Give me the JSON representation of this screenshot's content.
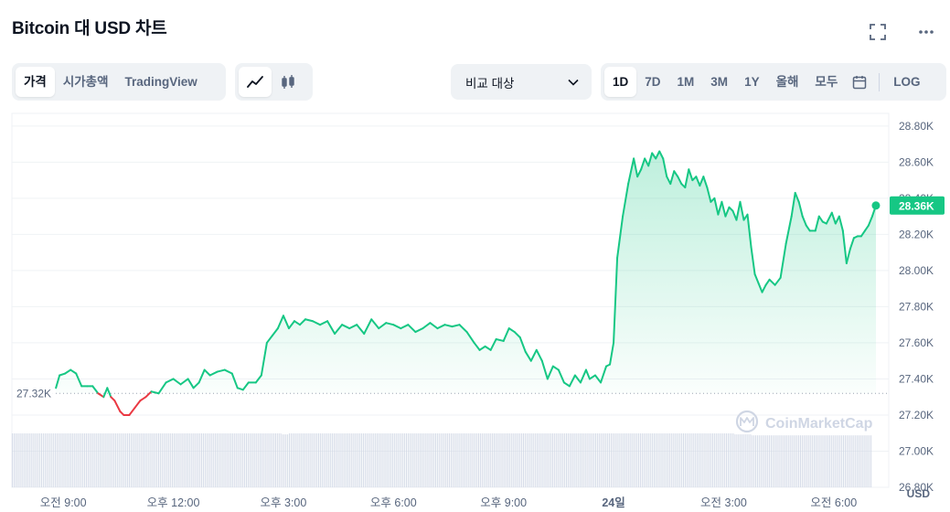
{
  "title": "Bitcoin 대 USD 차트",
  "toolbar": {
    "view_tabs": [
      "가격",
      "시가총액",
      "TradingView"
    ],
    "active_view": "가격",
    "compare_label": "비교 대상",
    "ranges": [
      "1D",
      "7D",
      "1M",
      "3M",
      "1Y",
      "올해",
      "모두"
    ],
    "active_range": "1D",
    "log_label": "LOG"
  },
  "icons": {
    "fullscreen": "fullscreen-icon",
    "more": "more-dots-icon",
    "line_chart": "line-chart-icon",
    "candlestick": "candlestick-icon",
    "chevron": "chevron-down-icon",
    "calendar": "calendar-icon"
  },
  "watermark": "CoinMarketCap",
  "colors": {
    "up": "#16c784",
    "down": "#ea3943",
    "accent_fill": "#16c784",
    "text_muted": "#58667e"
  },
  "chart_data": {
    "type": "area",
    "currency_label": "USD",
    "open_price_label": "27.32K",
    "open_price": 27.32,
    "current_price_label": "28.36K",
    "current_price": 28.36,
    "y_ticks": [
      "28.80K",
      "28.60K",
      "28.40K",
      "28.20K",
      "28.00K",
      "27.80K",
      "27.60K",
      "27.40K",
      "27.20K",
      "27.00K",
      "26.80K"
    ],
    "y_tick_values": [
      28.8,
      28.6,
      28.4,
      28.2,
      28.0,
      27.8,
      27.6,
      27.4,
      27.2,
      27.0,
      26.8
    ],
    "ylim": [
      26.8,
      28.87
    ],
    "x_ticks": [
      "오전 9:00",
      "오후 12:00",
      "오후 3:00",
      "오후 6:00",
      "오후 9:00",
      "24일",
      "오전 3:00",
      "오전 6:00"
    ],
    "x_tick_hours": [
      9,
      12,
      15,
      18,
      21,
      24,
      27,
      30
    ],
    "xlim": [
      7.6,
      31.5
    ],
    "grid": true,
    "series": [
      {
        "unit": "K USD",
        "points": [
          [
            8.8,
            27.35
          ],
          [
            8.9,
            27.42
          ],
          [
            9.05,
            27.43
          ],
          [
            9.2,
            27.45
          ],
          [
            9.35,
            27.43
          ],
          [
            9.5,
            27.36
          ],
          [
            9.65,
            27.36
          ],
          [
            9.8,
            27.36
          ],
          [
            9.95,
            27.32
          ],
          [
            10.1,
            27.3
          ],
          [
            10.2,
            27.35
          ],
          [
            10.3,
            27.3
          ],
          [
            10.4,
            27.28
          ],
          [
            10.55,
            27.22
          ],
          [
            10.65,
            27.2
          ],
          [
            10.8,
            27.2
          ],
          [
            10.95,
            27.24
          ],
          [
            11.1,
            27.28
          ],
          [
            11.25,
            27.3
          ],
          [
            11.4,
            27.33
          ],
          [
            11.6,
            27.32
          ],
          [
            11.8,
            27.38
          ],
          [
            12.0,
            27.4
          ],
          [
            12.2,
            27.37
          ],
          [
            12.4,
            27.4
          ],
          [
            12.55,
            27.35
          ],
          [
            12.7,
            27.38
          ],
          [
            12.85,
            27.45
          ],
          [
            13.0,
            27.42
          ],
          [
            13.2,
            27.44
          ],
          [
            13.4,
            27.45
          ],
          [
            13.6,
            27.43
          ],
          [
            13.75,
            27.35
          ],
          [
            13.9,
            27.34
          ],
          [
            14.05,
            27.38
          ],
          [
            14.25,
            27.38
          ],
          [
            14.4,
            27.42
          ],
          [
            14.55,
            27.6
          ],
          [
            14.7,
            27.64
          ],
          [
            14.85,
            27.68
          ],
          [
            15.0,
            27.75
          ],
          [
            15.15,
            27.68
          ],
          [
            15.3,
            27.72
          ],
          [
            15.45,
            27.7
          ],
          [
            15.6,
            27.73
          ],
          [
            15.8,
            27.72
          ],
          [
            16.0,
            27.7
          ],
          [
            16.2,
            27.72
          ],
          [
            16.4,
            27.65
          ],
          [
            16.6,
            27.7
          ],
          [
            16.8,
            27.68
          ],
          [
            17.0,
            27.7
          ],
          [
            17.2,
            27.65
          ],
          [
            17.4,
            27.73
          ],
          [
            17.6,
            27.68
          ],
          [
            17.8,
            27.71
          ],
          [
            18.0,
            27.7
          ],
          [
            18.2,
            27.68
          ],
          [
            18.4,
            27.7
          ],
          [
            18.6,
            27.66
          ],
          [
            18.8,
            27.68
          ],
          [
            19.0,
            27.71
          ],
          [
            19.2,
            27.68
          ],
          [
            19.4,
            27.7
          ],
          [
            19.6,
            27.69
          ],
          [
            19.8,
            27.7
          ],
          [
            20.0,
            27.66
          ],
          [
            20.2,
            27.6
          ],
          [
            20.35,
            27.56
          ],
          [
            20.5,
            27.58
          ],
          [
            20.65,
            27.56
          ],
          [
            20.8,
            27.62
          ],
          [
            21.0,
            27.61
          ],
          [
            21.15,
            27.68
          ],
          [
            21.3,
            27.66
          ],
          [
            21.45,
            27.63
          ],
          [
            21.6,
            27.55
          ],
          [
            21.75,
            27.5
          ],
          [
            21.9,
            27.56
          ],
          [
            22.05,
            27.5
          ],
          [
            22.2,
            27.4
          ],
          [
            22.35,
            27.47
          ],
          [
            22.5,
            27.45
          ],
          [
            22.65,
            27.38
          ],
          [
            22.8,
            27.36
          ],
          [
            22.95,
            27.42
          ],
          [
            23.1,
            27.38
          ],
          [
            23.25,
            27.45
          ],
          [
            23.35,
            27.4
          ],
          [
            23.5,
            27.42
          ],
          [
            23.65,
            27.38
          ],
          [
            23.8,
            27.47
          ],
          [
            23.9,
            27.48
          ],
          [
            24.0,
            27.6
          ],
          [
            24.1,
            28.07
          ],
          [
            24.25,
            28.3
          ],
          [
            24.4,
            28.48
          ],
          [
            24.55,
            28.62
          ],
          [
            24.65,
            28.52
          ],
          [
            24.75,
            28.56
          ],
          [
            24.85,
            28.62
          ],
          [
            24.95,
            28.58
          ],
          [
            25.05,
            28.65
          ],
          [
            25.15,
            28.62
          ],
          [
            25.25,
            28.66
          ],
          [
            25.35,
            28.62
          ],
          [
            25.45,
            28.52
          ],
          [
            25.55,
            28.48
          ],
          [
            25.65,
            28.55
          ],
          [
            25.75,
            28.52
          ],
          [
            25.85,
            28.48
          ],
          [
            25.95,
            28.46
          ],
          [
            26.05,
            28.56
          ],
          [
            26.15,
            28.5
          ],
          [
            26.25,
            28.52
          ],
          [
            26.35,
            28.47
          ],
          [
            26.45,
            28.52
          ],
          [
            26.55,
            28.46
          ],
          [
            26.65,
            28.38
          ],
          [
            26.75,
            28.4
          ],
          [
            26.85,
            28.31
          ],
          [
            26.95,
            28.38
          ],
          [
            27.05,
            28.3
          ],
          [
            27.15,
            28.35
          ],
          [
            27.25,
            28.33
          ],
          [
            27.35,
            28.28
          ],
          [
            27.45,
            28.38
          ],
          [
            27.55,
            28.28
          ],
          [
            27.65,
            28.31
          ],
          [
            27.75,
            28.13
          ],
          [
            27.85,
            27.98
          ],
          [
            27.95,
            27.93
          ],
          [
            28.05,
            27.88
          ],
          [
            28.15,
            27.92
          ],
          [
            28.25,
            27.95
          ],
          [
            28.4,
            27.92
          ],
          [
            28.55,
            27.96
          ],
          [
            28.7,
            28.15
          ],
          [
            28.85,
            28.3
          ],
          [
            28.95,
            28.43
          ],
          [
            29.05,
            28.38
          ],
          [
            29.15,
            28.3
          ],
          [
            29.25,
            28.25
          ],
          [
            29.35,
            28.22
          ],
          [
            29.5,
            28.22
          ],
          [
            29.6,
            28.3
          ],
          [
            29.7,
            28.27
          ],
          [
            29.8,
            28.26
          ],
          [
            29.95,
            28.32
          ],
          [
            30.05,
            28.26
          ],
          [
            30.15,
            28.3
          ],
          [
            30.25,
            28.22
          ],
          [
            30.35,
            28.04
          ],
          [
            30.45,
            28.12
          ],
          [
            30.55,
            28.18
          ],
          [
            30.65,
            28.19
          ],
          [
            30.75,
            28.19
          ],
          [
            30.85,
            28.22
          ],
          [
            30.95,
            28.25
          ],
          [
            31.05,
            28.3
          ],
          [
            31.15,
            28.36
          ]
        ]
      }
    ],
    "volume": [
      0.55,
      0.55,
      0.55,
      0.55,
      0.55,
      0.55,
      0.55,
      0.55,
      0.55,
      0.55,
      0.55,
      0.55,
      0.55,
      0.55,
      0.55,
      0.55,
      0.55,
      0.55,
      0.55,
      0.55,
      0.55,
      0.55,
      0.55,
      0.55,
      0.55,
      0.55,
      0.55,
      0.55,
      0.55,
      0.55,
      0.55,
      0.55,
      0.55,
      0.55,
      0.55,
      0.55,
      0.55,
      0.55,
      0.55,
      0.55,
      0.55,
      0.55,
      0.55,
      0.55,
      0.55,
      0.55,
      0.55,
      0.55,
      0.55,
      0.55,
      0.55,
      0.55,
      0.55,
      0.55,
      0.55,
      0.55,
      0.55,
      0.55,
      0.55,
      0.55,
      0.55,
      0.55,
      0.55,
      0.55,
      0.55,
      0.55,
      0.55,
      0.55,
      0.55,
      0.55,
      0.55,
      0.55,
      0.55,
      0.55,
      0.55,
      0.55,
      0.55,
      0.55,
      0.55,
      0.55,
      0.55,
      0.55,
      0.55,
      0.55,
      0.55,
      0.55,
      0.55,
      0.55,
      0.55,
      0.55,
      0.55,
      0.55,
      0.55,
      0.55,
      0.55,
      0.55,
      0.55,
      0.55,
      0.55,
      0.55,
      0.55,
      0.55,
      0.55,
      0.55,
      0.55,
      0.55,
      0.55,
      0.55,
      0.55,
      0.55,
      0.55,
      0.55,
      0.55,
      0.55,
      0.55,
      0.55,
      0.55,
      0.55,
      0.55,
      0.55,
      0.55,
      0.55,
      0.55,
      0.55,
      0.55,
      0.55,
      0.55,
      0.55,
      0.55,
      0.55,
      0.55,
      0.55,
      0.55,
      0.55,
      0.55,
      0.55,
      0.55,
      0.55,
      0.55,
      0.55,
      0.55,
      0.55,
      0.55,
      0.55,
      0.55,
      0.55,
      0.55,
      0.55,
      0.55,
      0.55,
      0.55,
      0.55,
      0.55,
      0.55,
      0.55,
      0.55,
      0.55,
      0.54,
      0.54,
      0.54,
      0.54,
      0.55,
      0.55,
      0.55,
      0.55,
      0.55,
      0.55,
      0.55,
      0.55,
      0.55,
      0.55,
      0.55,
      0.55,
      0.55,
      0.55,
      0.55,
      0.55,
      0.55,
      0.55,
      0.55,
      0.55,
      0.55,
      0.55,
      0.55,
      0.55,
      0.55,
      0.55,
      0.55,
      0.55,
      0.55,
      0.55,
      0.55,
      0.55,
      0.55,
      0.55,
      0.55,
      0.55,
      0.55,
      0.55,
      0.55,
      0.55,
      0.55,
      0.55,
      0.55,
      0.55,
      0.55,
      0.55,
      0.55,
      0.55,
      0.55,
      0.55,
      0.55,
      0.55,
      0.55,
      0.55,
      0.55,
      0.55,
      0.55,
      0.55,
      0.55,
      0.55,
      0.55,
      0.55,
      0.55,
      0.55,
      0.55,
      0.55,
      0.55,
      0.55,
      0.55,
      0.55,
      0.55,
      0.55,
      0.55,
      0.55,
      0.55,
      0.55,
      0.55,
      0.55,
      0.55,
      0.55,
      0.55,
      0.55,
      0.55,
      0.55,
      0.55,
      0.55,
      0.55,
      0.55,
      0.55,
      0.55,
      0.55,
      0.55,
      0.55,
      0.55,
      0.55,
      0.55,
      0.55,
      0.55,
      0.55,
      0.55,
      0.55,
      0.55,
      0.55,
      0.55,
      0.55,
      0.55,
      0.55,
      0.55,
      0.55,
      0.55,
      0.55,
      0.55,
      0.55,
      0.55,
      0.55,
      0.55,
      0.55,
      0.55,
      0.55,
      0.55,
      0.55,
      0.55,
      0.55,
      0.55,
      0.55,
      0.55,
      0.55,
      0.55,
      0.55,
      0.55,
      0.55,
      0.55,
      0.55,
      0.55,
      0.55,
      0.55,
      0.55,
      0.55,
      0.55,
      0.55,
      0.55,
      0.55,
      0.55,
      0.55,
      0.55,
      0.55,
      0.55,
      0.55,
      0.55,
      0.55,
      0.55,
      0.55,
      0.55,
      0.55,
      0.55,
      0.55,
      0.55,
      0.55,
      0.55,
      0.55,
      0.55,
      0.55,
      0.55,
      0.55,
      0.55,
      0.55,
      0.55,
      0.55,
      0.55,
      0.55,
      0.55,
      0.55,
      0.55,
      0.55,
      0.55,
      0.55,
      0.55,
      0.55,
      0.55,
      0.55,
      0.55,
      0.55,
      0.55,
      0.55,
      0.55,
      0.55,
      0.55,
      0.55,
      0.55,
      0.55,
      0.55,
      0.55,
      0.55,
      0.55,
      0.55,
      0.55,
      0.55,
      0.55,
      0.55,
      0.55,
      0.55,
      0.55,
      0.55,
      0.55,
      0.55,
      0.55,
      0.55,
      0.55,
      0.55,
      0.55,
      0.55,
      0.55,
      0.55,
      0.55,
      0.55,
      0.55,
      0.55,
      0.55,
      0.55,
      0.55,
      0.55,
      0.55,
      0.55,
      0.55,
      0.55,
      0.55,
      0.55,
      0.55,
      0.55,
      0.55,
      0.55,
      0.55,
      0.55,
      0.55,
      0.55,
      0.55,
      0.55,
      0.55,
      0.55,
      0.55,
      0.55,
      0.55,
      0.55,
      0.55,
      0.55,
      0.55,
      0.55,
      0.55,
      0.55,
      0.55,
      0.55,
      0.55,
      0.55,
      0.55,
      0.55,
      0.55,
      0.55,
      0.55,
      0.55,
      0.54,
      0.54,
      0.54,
      0.54,
      0.54,
      0.54,
      0.54,
      0.54,
      0.54,
      0.54,
      0.53,
      0.53,
      0.53,
      0.53,
      0.53,
      0.53,
      0.53,
      0.53,
      0.53,
      0.53,
      0.53,
      0.53,
      0.53,
      0.53,
      0.53,
      0.53,
      0.53,
      0.53,
      0.53,
      0.53,
      0.53,
      0.53,
      0.53,
      0.53,
      0.53,
      0.53,
      0.53,
      0.53,
      0.53,
      0.53,
      0.53,
      0.53,
      0.53,
      0.53,
      0.53,
      0.53,
      0.53,
      0.53,
      0.53,
      0.53,
      0.53,
      0.53,
      0.53,
      0.53,
      0.53,
      0.53,
      0.53,
      0.53,
      0.53,
      0.53,
      0.53,
      0.53,
      0.53,
      0.53,
      0.53,
      0.53,
      0.53,
      0.53,
      0.53,
      0.53,
      0.53,
      0.53,
      0.53,
      0.53,
      0.53,
      0.53,
      0.53,
      0.53,
      0.53,
      0.53
    ]
  }
}
